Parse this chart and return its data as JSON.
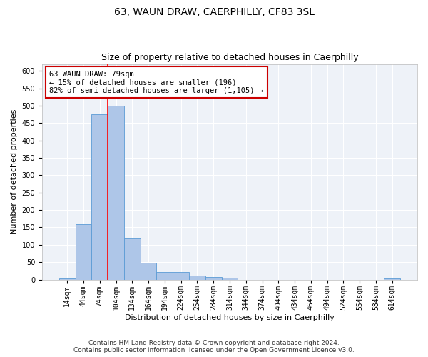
{
  "title": "63, WAUN DRAW, CAERPHILLY, CF83 3SL",
  "subtitle": "Size of property relative to detached houses in Caerphilly",
  "xlabel": "Distribution of detached houses by size in Caerphilly",
  "ylabel": "Number of detached properties",
  "footer_line1": "Contains HM Land Registry data © Crown copyright and database right 2024.",
  "footer_line2": "Contains public sector information licensed under the Open Government Licence v3.0.",
  "categories": [
    "14sqm",
    "44sqm",
    "74sqm",
    "104sqm",
    "134sqm",
    "164sqm",
    "194sqm",
    "224sqm",
    "254sqm",
    "284sqm",
    "314sqm",
    "344sqm",
    "374sqm",
    "404sqm",
    "434sqm",
    "464sqm",
    "494sqm",
    "524sqm",
    "554sqm",
    "584sqm",
    "614sqm"
  ],
  "bar_values": [
    3,
    160,
    475,
    500,
    118,
    48,
    22,
    22,
    12,
    8,
    6,
    0,
    0,
    0,
    0,
    0,
    0,
    0,
    0,
    0,
    3
  ],
  "bar_color": "#aec6e8",
  "bar_edge_color": "#5b9bd5",
  "bar_width": 1.0,
  "property_line_bin": 2.5,
  "annotation_text": "63 WAUN DRAW: 79sqm\n← 15% of detached houses are smaller (196)\n82% of semi-detached houses are larger (1,105) →",
  "annotation_box_color": "#ffffff",
  "annotation_box_edge_color": "#cc0000",
  "ylim": [
    0,
    620
  ],
  "yticks": [
    0,
    50,
    100,
    150,
    200,
    250,
    300,
    350,
    400,
    450,
    500,
    550,
    600
  ],
  "background_color": "#ffffff",
  "plot_background_color": "#eef2f8",
  "grid_color": "#ffffff",
  "title_fontsize": 10,
  "subtitle_fontsize": 9,
  "axis_label_fontsize": 8,
  "tick_fontsize": 7,
  "annotation_fontsize": 7.5,
  "footer_fontsize": 6.5
}
